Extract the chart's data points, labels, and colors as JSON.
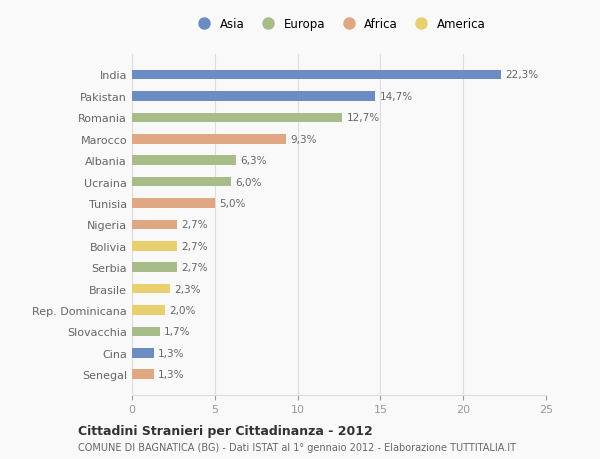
{
  "countries": [
    "India",
    "Pakistan",
    "Romania",
    "Marocco",
    "Albania",
    "Ucraina",
    "Tunisia",
    "Nigeria",
    "Bolivia",
    "Serbia",
    "Brasile",
    "Rep. Dominicana",
    "Slovacchia",
    "Cina",
    "Senegal"
  ],
  "values": [
    22.3,
    14.7,
    12.7,
    9.3,
    6.3,
    6.0,
    5.0,
    2.7,
    2.7,
    2.7,
    2.3,
    2.0,
    1.7,
    1.3,
    1.3
  ],
  "labels": [
    "22,3%",
    "14,7%",
    "12,7%",
    "9,3%",
    "6,3%",
    "6,0%",
    "5,0%",
    "2,7%",
    "2,7%",
    "2,7%",
    "2,3%",
    "2,0%",
    "1,7%",
    "1,3%",
    "1,3%"
  ],
  "continents": [
    "Asia",
    "Asia",
    "Europa",
    "Africa",
    "Europa",
    "Europa",
    "Africa",
    "Africa",
    "America",
    "Europa",
    "America",
    "America",
    "Europa",
    "Asia",
    "Africa"
  ],
  "colors": {
    "Asia": "#6b8dc4",
    "Europa": "#a8bc8a",
    "Africa": "#e0a882",
    "America": "#e8d070"
  },
  "xlim": [
    0,
    25
  ],
  "xticks": [
    0,
    5,
    10,
    15,
    20,
    25
  ],
  "title": "Cittadini Stranieri per Cittadinanza - 2012",
  "subtitle": "COMUNE DI BAGNATICA (BG) - Dati ISTAT al 1° gennaio 2012 - Elaborazione TUTTITALIA.IT",
  "bg_color": "#f9f9f9",
  "bar_height": 0.45,
  "grid_color": "#dddddd",
  "legend_order": [
    "Asia",
    "Europa",
    "Africa",
    "America"
  ]
}
